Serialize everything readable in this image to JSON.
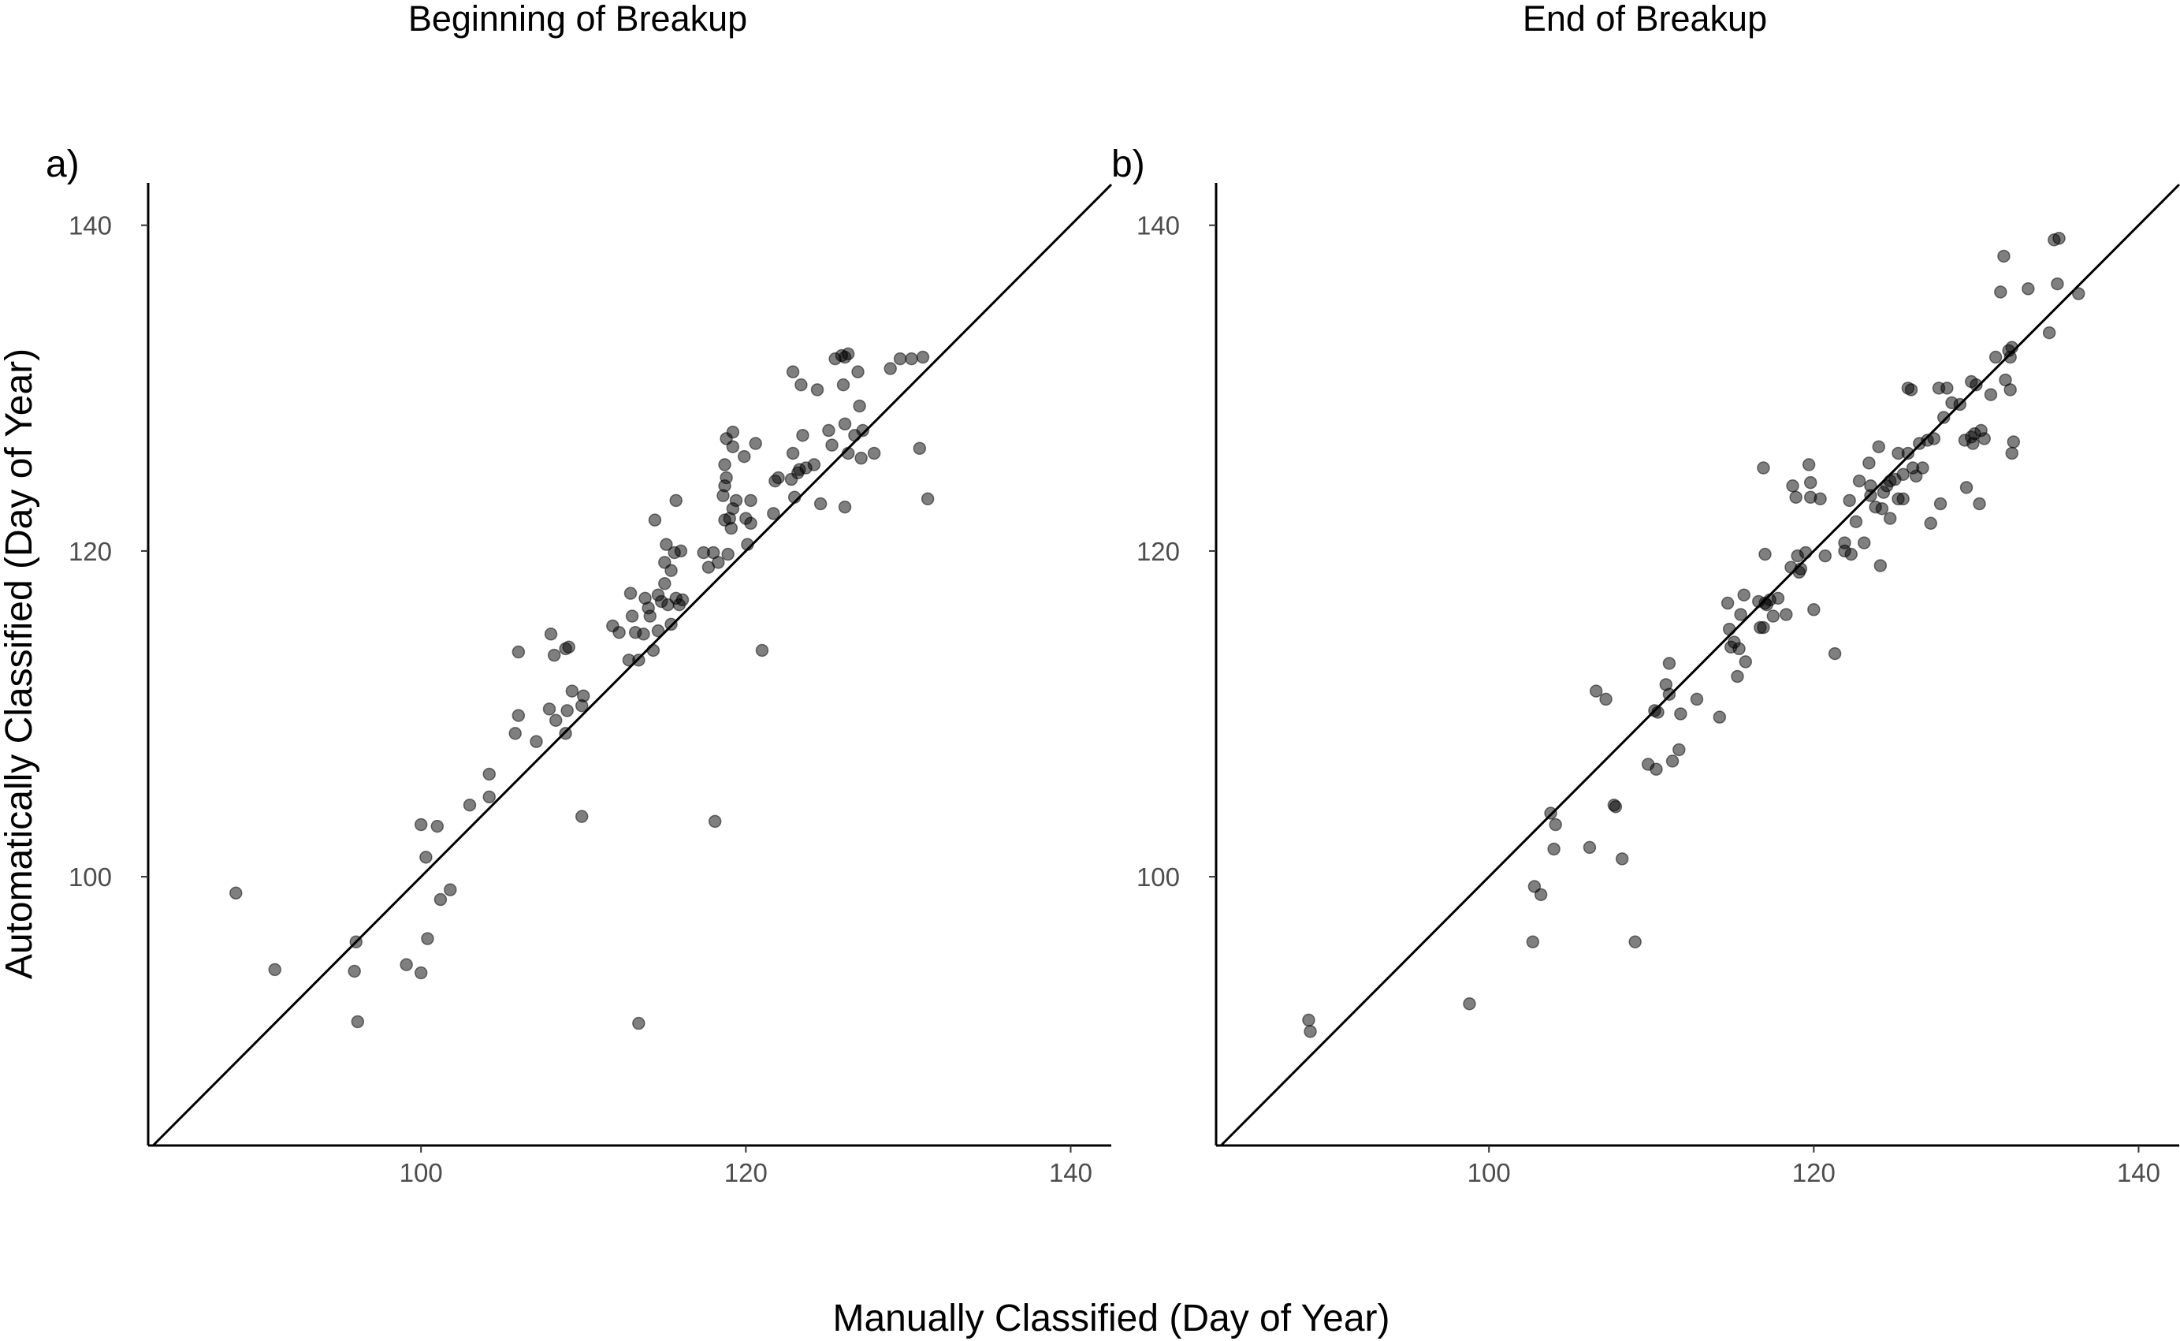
{
  "figure": {
    "xlabel": "Manually Classified (Day of Year)",
    "ylabel": "Automatically Classified (Day of Year)"
  },
  "chart_data": [
    {
      "type": "scatter",
      "panel_tag": "a)",
      "title": "Beginning of Breakup",
      "xlim": [
        83.2,
        142.5
      ],
      "ylim": [
        83.5,
        142.6
      ],
      "xticks": [
        100,
        120,
        140
      ],
      "yticks": [
        100,
        120,
        140
      ],
      "reference_line": "y = x",
      "marker_color": "#000000",
      "marker_alpha": 0.5,
      "points": [
        [
          88.6,
          99.0
        ],
        [
          91.0,
          94.3
        ],
        [
          96.0,
          96.0
        ],
        [
          95.9,
          94.2
        ],
        [
          96.1,
          91.1
        ],
        [
          99.1,
          94.6
        ],
        [
          100.0,
          94.1
        ],
        [
          100.4,
          96.2
        ],
        [
          100.0,
          103.2
        ],
        [
          101.0,
          103.1
        ],
        [
          100.3,
          101.2
        ],
        [
          101.2,
          98.6
        ],
        [
          101.8,
          99.2
        ],
        [
          103.0,
          104.4
        ],
        [
          104.2,
          104.9
        ],
        [
          104.2,
          106.3
        ],
        [
          105.8,
          108.8
        ],
        [
          106.0,
          109.9
        ],
        [
          107.1,
          108.3
        ],
        [
          106.0,
          113.8
        ],
        [
          108.0,
          114.9
        ],
        [
          108.2,
          113.6
        ],
        [
          107.9,
          110.3
        ],
        [
          108.3,
          109.6
        ],
        [
          108.9,
          108.8
        ],
        [
          109.0,
          110.2
        ],
        [
          108.9,
          114.0
        ],
        [
          109.1,
          114.1
        ],
        [
          109.3,
          111.4
        ],
        [
          109.9,
          110.5
        ],
        [
          110.0,
          111.1
        ],
        [
          109.9,
          103.7
        ],
        [
          111.8,
          115.4
        ],
        [
          112.2,
          115.0
        ],
        [
          112.8,
          113.3
        ],
        [
          112.9,
          117.4
        ],
        [
          113.0,
          116.0
        ],
        [
          113.2,
          115.0
        ],
        [
          113.4,
          113.3
        ],
        [
          113.7,
          114.9
        ],
        [
          113.4,
          91.0
        ],
        [
          113.8,
          117.1
        ],
        [
          114.0,
          116.5
        ],
        [
          114.1,
          116.0
        ],
        [
          114.3,
          113.9
        ],
        [
          114.6,
          115.1
        ],
        [
          114.6,
          117.3
        ],
        [
          114.8,
          116.9
        ],
        [
          114.4,
          121.9
        ],
        [
          115.0,
          118.0
        ],
        [
          115.0,
          119.3
        ],
        [
          115.1,
          120.4
        ],
        [
          115.2,
          116.7
        ],
        [
          115.4,
          115.5
        ],
        [
          115.4,
          118.8
        ],
        [
          115.6,
          119.9
        ],
        [
          115.7,
          117.1
        ],
        [
          115.9,
          116.7
        ],
        [
          115.7,
          123.1
        ],
        [
          116.0,
          120.0
        ],
        [
          116.1,
          117.0
        ],
        [
          117.4,
          119.9
        ],
        [
          117.7,
          119.0
        ],
        [
          118.1,
          103.4
        ],
        [
          118.0,
          119.9
        ],
        [
          118.3,
          119.3
        ],
        [
          118.6,
          123.4
        ],
        [
          118.7,
          124.0
        ],
        [
          118.8,
          124.5
        ],
        [
          118.7,
          125.3
        ],
        [
          118.8,
          126.9
        ],
        [
          118.7,
          121.9
        ],
        [
          118.9,
          119.8
        ],
        [
          119.0,
          122.0
        ],
        [
          119.2,
          122.6
        ],
        [
          119.1,
          121.4
        ],
        [
          119.2,
          126.4
        ],
        [
          119.2,
          127.3
        ],
        [
          119.4,
          123.1
        ],
        [
          120.0,
          122.0
        ],
        [
          119.9,
          125.8
        ],
        [
          120.1,
          120.4
        ],
        [
          120.3,
          121.7
        ],
        [
          120.3,
          123.1
        ],
        [
          120.6,
          126.6
        ],
        [
          121.0,
          113.9
        ],
        [
          121.7,
          122.3
        ],
        [
          121.8,
          124.3
        ],
        [
          122.0,
          124.5
        ],
        [
          122.8,
          124.4
        ],
        [
          122.9,
          126.0
        ],
        [
          123.0,
          123.3
        ],
        [
          123.2,
          124.8
        ],
        [
          123.3,
          125.0
        ],
        [
          122.9,
          131.0
        ],
        [
          123.4,
          130.2
        ],
        [
          123.5,
          127.1
        ],
        [
          123.7,
          125.1
        ],
        [
          124.2,
          125.3
        ],
        [
          124.4,
          129.9
        ],
        [
          124.6,
          122.9
        ],
        [
          125.1,
          127.4
        ],
        [
          125.3,
          126.5
        ],
        [
          125.5,
          131.8
        ],
        [
          125.9,
          132.0
        ],
        [
          126.1,
          122.7
        ],
        [
          126.1,
          127.8
        ],
        [
          126.0,
          130.2
        ],
        [
          126.1,
          131.9
        ],
        [
          126.3,
          132.1
        ],
        [
          126.3,
          126.0
        ],
        [
          126.7,
          127.1
        ],
        [
          126.9,
          131.0
        ],
        [
          127.0,
          128.9
        ],
        [
          127.1,
          125.7
        ],
        [
          127.2,
          127.4
        ],
        [
          127.9,
          126.0
        ],
        [
          128.9,
          131.2
        ],
        [
          129.5,
          131.8
        ],
        [
          130.2,
          131.8
        ],
        [
          130.7,
          126.3
        ],
        [
          130.9,
          131.9
        ],
        [
          131.2,
          123.2
        ]
      ]
    },
    {
      "type": "scatter",
      "panel_tag": "b)",
      "title": "End of Breakup",
      "xlim": [
        83.2,
        142.5
      ],
      "ylim": [
        83.5,
        142.6
      ],
      "xticks": [
        100,
        120,
        140
      ],
      "yticks": [
        100,
        120,
        140
      ],
      "reference_line": "y = x",
      "marker_color": "#000000",
      "marker_alpha": 0.5,
      "points": [
        [
          88.9,
          91.2
        ],
        [
          89.0,
          90.5
        ],
        [
          98.8,
          92.2
        ],
        [
          102.7,
          96.0
        ],
        [
          102.8,
          99.4
        ],
        [
          103.2,
          98.9
        ],
        [
          103.8,
          103.9
        ],
        [
          104.0,
          101.7
        ],
        [
          104.1,
          103.2
        ],
        [
          106.2,
          101.8
        ],
        [
          106.6,
          111.4
        ],
        [
          107.2,
          110.9
        ],
        [
          107.7,
          104.4
        ],
        [
          107.8,
          104.3
        ],
        [
          108.2,
          101.1
        ],
        [
          109.0,
          96.0
        ],
        [
          109.8,
          106.9
        ],
        [
          110.2,
          110.2
        ],
        [
          110.3,
          106.6
        ],
        [
          110.4,
          110.1
        ],
        [
          110.9,
          111.8
        ],
        [
          111.1,
          113.1
        ],
        [
          111.1,
          111.2
        ],
        [
          111.3,
          107.1
        ],
        [
          111.7,
          107.8
        ],
        [
          111.8,
          110.0
        ],
        [
          112.8,
          110.9
        ],
        [
          114.2,
          109.8
        ],
        [
          114.7,
          116.8
        ],
        [
          114.8,
          115.2
        ],
        [
          114.9,
          114.1
        ],
        [
          115.1,
          114.4
        ],
        [
          115.3,
          112.3
        ],
        [
          115.4,
          114.0
        ],
        [
          115.5,
          116.1
        ],
        [
          115.7,
          117.3
        ],
        [
          115.8,
          113.2
        ],
        [
          116.6,
          116.9
        ],
        [
          116.7,
          115.3
        ],
        [
          116.9,
          115.3
        ],
        [
          116.9,
          125.1
        ],
        [
          117.0,
          116.8
        ],
        [
          117.1,
          116.7
        ],
        [
          117.0,
          119.8
        ],
        [
          117.3,
          117.0
        ],
        [
          117.5,
          116.0
        ],
        [
          117.8,
          117.1
        ],
        [
          118.3,
          116.1
        ],
        [
          118.6,
          119.0
        ],
        [
          118.7,
          124.0
        ],
        [
          118.9,
          123.3
        ],
        [
          119.0,
          119.7
        ],
        [
          119.1,
          118.7
        ],
        [
          119.2,
          118.9
        ],
        [
          119.5,
          119.9
        ],
        [
          119.7,
          125.3
        ],
        [
          119.8,
          124.2
        ],
        [
          119.8,
          123.3
        ],
        [
          120.0,
          116.4
        ],
        [
          120.4,
          123.2
        ],
        [
          120.7,
          119.7
        ],
        [
          121.3,
          113.7
        ],
        [
          121.9,
          120.0
        ],
        [
          121.9,
          120.5
        ],
        [
          122.2,
          123.1
        ],
        [
          122.3,
          119.8
        ],
        [
          122.6,
          121.8
        ],
        [
          122.8,
          124.3
        ],
        [
          123.1,
          120.5
        ],
        [
          123.4,
          125.4
        ],
        [
          123.5,
          123.4
        ],
        [
          123.5,
          124.0
        ],
        [
          123.8,
          122.7
        ],
        [
          124.0,
          126.4
        ],
        [
          124.1,
          119.1
        ],
        [
          124.2,
          122.6
        ],
        [
          124.3,
          123.6
        ],
        [
          124.5,
          124.0
        ],
        [
          124.7,
          122.0
        ],
        [
          124.7,
          124.3
        ],
        [
          125.0,
          124.4
        ],
        [
          125.2,
          123.2
        ],
        [
          125.2,
          126.0
        ],
        [
          125.5,
          124.7
        ],
        [
          125.5,
          123.2
        ],
        [
          125.8,
          126.0
        ],
        [
          125.8,
          130.0
        ],
        [
          126.0,
          129.9
        ],
        [
          126.1,
          125.1
        ],
        [
          126.3,
          124.6
        ],
        [
          126.5,
          126.6
        ],
        [
          126.7,
          125.1
        ],
        [
          127.0,
          126.8
        ],
        [
          127.2,
          121.7
        ],
        [
          127.4,
          126.9
        ],
        [
          127.7,
          130.0
        ],
        [
          127.8,
          122.9
        ],
        [
          128.0,
          128.2
        ],
        [
          128.2,
          130.0
        ],
        [
          128.5,
          129.1
        ],
        [
          129.0,
          129.0
        ],
        [
          129.3,
          126.8
        ],
        [
          129.4,
          123.9
        ],
        [
          129.7,
          130.4
        ],
        [
          129.7,
          127.0
        ],
        [
          129.8,
          126.6
        ],
        [
          129.9,
          127.2
        ],
        [
          130.0,
          130.2
        ],
        [
          130.2,
          122.9
        ],
        [
          130.3,
          127.4
        ],
        [
          130.5,
          126.9
        ],
        [
          130.9,
          129.6
        ],
        [
          131.2,
          131.9
        ],
        [
          131.5,
          135.9
        ],
        [
          131.7,
          138.1
        ],
        [
          131.8,
          130.5
        ],
        [
          132.0,
          132.3
        ],
        [
          132.1,
          129.9
        ],
        [
          132.2,
          132.5
        ],
        [
          132.1,
          131.9
        ],
        [
          132.3,
          126.7
        ],
        [
          132.2,
          126.0
        ],
        [
          133.2,
          136.1
        ],
        [
          134.5,
          133.4
        ],
        [
          134.8,
          139.1
        ],
        [
          135.0,
          136.4
        ],
        [
          135.1,
          139.2
        ],
        [
          136.3,
          135.8
        ]
      ]
    }
  ]
}
